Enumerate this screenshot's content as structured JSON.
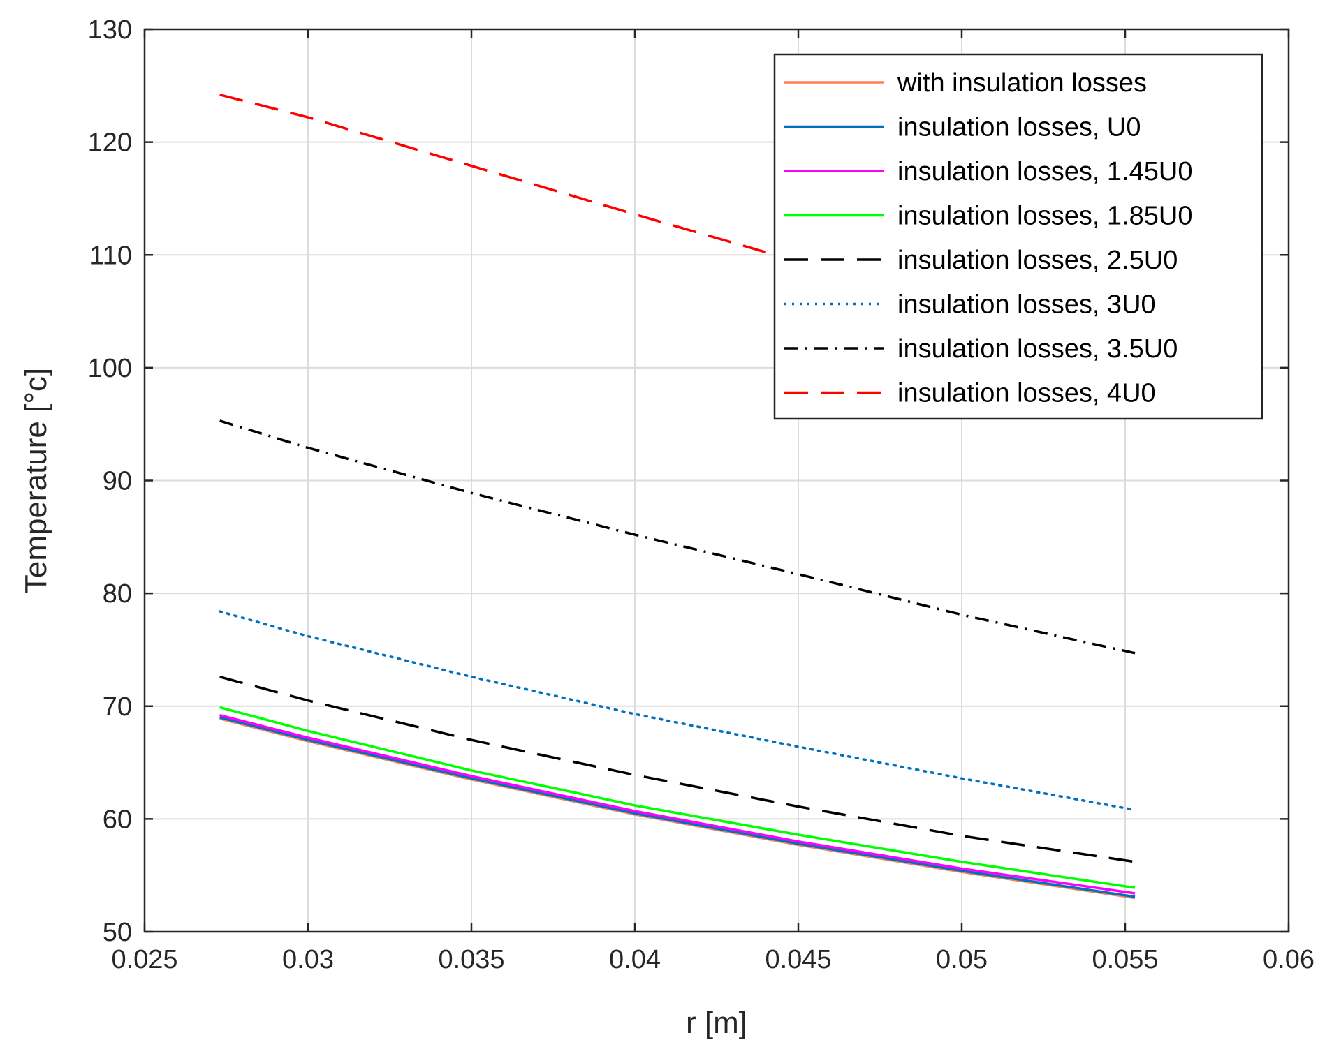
{
  "chart_data": {
    "type": "line",
    "title": "",
    "xlabel": "r [m]",
    "ylabel": "Temperature [°c]",
    "xlim": [
      0.025,
      0.06
    ],
    "ylim": [
      50,
      130
    ],
    "xticks": [
      0.025,
      0.03,
      0.035,
      0.04,
      0.045,
      0.05,
      0.055,
      0.06
    ],
    "xtick_labels": [
      "0.025",
      "0.03",
      "0.035",
      "0.04",
      "0.045",
      "0.05",
      "0.055",
      "0.06"
    ],
    "yticks": [
      50,
      60,
      70,
      80,
      90,
      100,
      110,
      120,
      130
    ],
    "ytick_labels": [
      "50",
      "60",
      "70",
      "80",
      "90",
      "100",
      "110",
      "120",
      "130"
    ],
    "grid": true,
    "legend_position": "top-right",
    "x": [
      0.0273,
      0.03,
      0.035,
      0.04,
      0.045,
      0.05,
      0.0553
    ],
    "series": [
      {
        "name": "with insulation losses",
        "color": "#ff7f50",
        "style": "solid",
        "values": [
          68.9,
          66.9,
          63.5,
          60.4,
          57.7,
          55.3,
          53.0
        ]
      },
      {
        "name": "insulation losses, U0",
        "color": "#0072bd",
        "style": "solid",
        "values": [
          69.0,
          67.0,
          63.6,
          60.5,
          57.8,
          55.4,
          53.1
        ]
      },
      {
        "name": "insulation losses, 1.45U0",
        "color": "#ff00ff",
        "style": "solid",
        "values": [
          69.2,
          67.2,
          63.8,
          60.7,
          58.0,
          55.6,
          53.4
        ]
      },
      {
        "name": "insulation losses, 1.85U0",
        "color": "#00ff00",
        "style": "solid",
        "values": [
          69.9,
          67.8,
          64.3,
          61.2,
          58.6,
          56.2,
          53.9
        ]
      },
      {
        "name": "insulation losses, 2.5U0",
        "color": "#000000",
        "style": "dashed",
        "values": [
          72.6,
          70.5,
          67.0,
          63.9,
          61.1,
          58.5,
          56.2
        ]
      },
      {
        "name": "insulation losses, 3U0",
        "color": "#0072bd",
        "style": "dotted",
        "values": [
          78.4,
          76.2,
          72.6,
          69.3,
          66.4,
          63.6,
          60.8
        ]
      },
      {
        "name": "insulation losses, 3.5U0",
        "color": "#000000",
        "style": "dashdot",
        "values": [
          95.3,
          92.9,
          88.9,
          85.2,
          81.7,
          78.1,
          74.7
        ]
      },
      {
        "name": "insulation losses, 4U0",
        "color": "#ff0000",
        "style": "dashed",
        "values": [
          124.2,
          122.2,
          117.9,
          113.6,
          109.4,
          null,
          null
        ]
      }
    ]
  }
}
